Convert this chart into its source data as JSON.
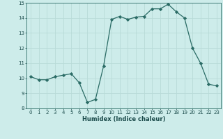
{
  "x": [
    0,
    1,
    2,
    3,
    4,
    5,
    6,
    7,
    8,
    9,
    10,
    11,
    12,
    13,
    14,
    15,
    16,
    17,
    18,
    19,
    20,
    21,
    22,
    23
  ],
  "y": [
    10.1,
    9.9,
    9.9,
    10.1,
    10.2,
    10.3,
    9.7,
    8.4,
    8.6,
    10.8,
    13.9,
    14.1,
    13.9,
    14.05,
    14.1,
    14.6,
    14.6,
    14.9,
    14.4,
    14.0,
    12.0,
    11.0,
    9.6,
    9.5
  ],
  "xlabel": "Humidex (Indice chaleur)",
  "xlim": [
    -0.5,
    23.5
  ],
  "ylim": [
    8,
    15
  ],
  "yticks": [
    8,
    9,
    10,
    11,
    12,
    13,
    14,
    15
  ],
  "xticks": [
    0,
    1,
    2,
    3,
    4,
    5,
    6,
    7,
    8,
    9,
    10,
    11,
    12,
    13,
    14,
    15,
    16,
    17,
    18,
    19,
    20,
    21,
    22,
    23
  ],
  "line_color": "#2a6b65",
  "marker": "D",
  "marker_size": 2.2,
  "bg_color": "#cdecea",
  "grid_color": "#b8dbd8",
  "font_color": "#1a4a4a",
  "tick_fontsize": 5.0,
  "xlabel_fontsize": 6.0
}
